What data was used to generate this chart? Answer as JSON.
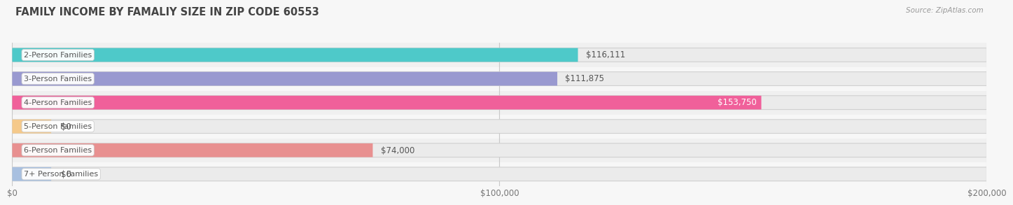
{
  "title": "FAMILY INCOME BY FAMALIY SIZE IN ZIP CODE 60553",
  "source": "Source: ZipAtlas.com",
  "categories": [
    "2-Person Families",
    "3-Person Families",
    "4-Person Families",
    "5-Person Families",
    "6-Person Families",
    "7+ Person Families"
  ],
  "values": [
    116111,
    111875,
    153750,
    0,
    74000,
    0
  ],
  "bar_colors": [
    "#4ec9c9",
    "#9999d0",
    "#f0609a",
    "#f5c98a",
    "#e89090",
    "#a8c0e0"
  ],
  "value_labels": [
    "$116,111",
    "$111,875",
    "$153,750",
    "$0",
    "$74,000",
    "$0"
  ],
  "value_label_inside": [
    false,
    false,
    true,
    false,
    false,
    false
  ],
  "xlim": [
    0,
    200000
  ],
  "xticks": [
    0,
    100000,
    200000
  ],
  "xtick_labels": [
    "$0",
    "$100,000",
    "$200,000"
  ],
  "bg_color": "#f7f7f7",
  "bar_bg_color": "#ebebeb",
  "row_bg_colors": [
    "#f0f0f0",
    "#f7f7f7",
    "#f0f0f0",
    "#f7f7f7",
    "#f0f0f0",
    "#f7f7f7"
  ],
  "title_fontsize": 10.5,
  "bar_height": 0.58,
  "bar_label_fontsize": 8.0,
  "value_label_fontsize": 8.5,
  "zero_bar_width": 8000
}
